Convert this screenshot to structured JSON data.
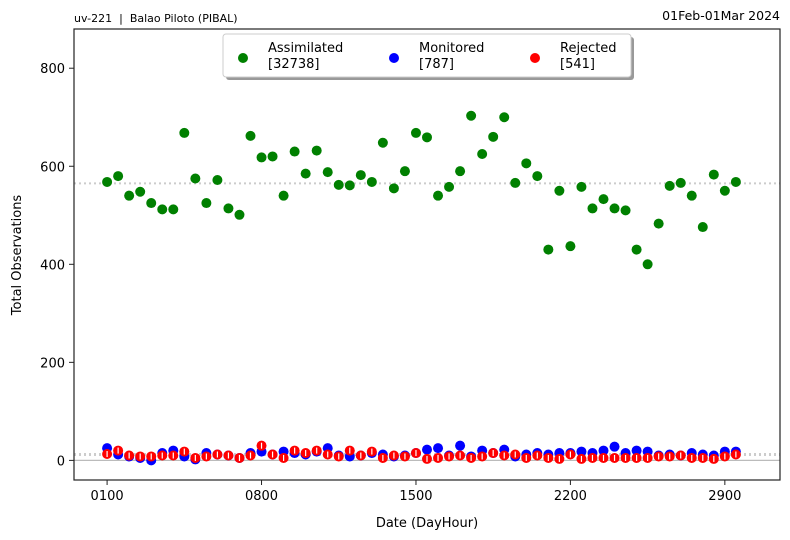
{
  "header": {
    "left_title": "uv-221  |  Balao Piloto (PIBAL)",
    "right_title": "01Feb-01Mar 2024"
  },
  "chart_data": {
    "type": "scatter",
    "xlabel": "Date (DayHour)",
    "ylabel": "Total Observations",
    "xlim": [
      -3,
      61
    ],
    "ylim": [
      -40,
      880
    ],
    "x_ticks": [
      {
        "value": 0,
        "label": "0100"
      },
      {
        "value": 14,
        "label": "0800"
      },
      {
        "value": 28,
        "label": "1500"
      },
      {
        "value": 42,
        "label": "2200"
      },
      {
        "value": 56,
        "label": "2900"
      }
    ],
    "y_ticks": [
      0,
      200,
      400,
      600,
      800
    ],
    "reference_lines": [
      {
        "series": "Assimilated",
        "y": 565
      },
      {
        "series": "Monitored",
        "y": 13
      },
      {
        "series": "Rejected",
        "y": 11
      }
    ],
    "legend": {
      "placement": "top-center",
      "entries": [
        {
          "name": "Assimilated",
          "count": "[32738]",
          "color": "#008000"
        },
        {
          "name": "Monitored",
          "count": "[787]",
          "color": "#0000ff"
        },
        {
          "name": "Rejected",
          "count": "[541]",
          "color": "#ff0000"
        }
      ]
    },
    "series": [
      {
        "name": "Assimilated",
        "color": "#008000",
        "x": [
          0,
          1,
          2,
          3,
          4,
          5,
          6,
          7,
          8,
          9,
          10,
          11,
          12,
          13,
          14,
          15,
          16,
          17,
          18,
          19,
          20,
          21,
          22,
          23,
          24,
          25,
          26,
          27,
          28,
          29,
          30,
          31,
          32,
          33,
          34,
          35,
          36,
          37,
          38,
          39,
          40,
          41,
          42,
          43,
          44,
          45,
          46,
          47,
          48,
          49,
          50,
          51,
          52,
          53,
          54,
          55,
          56,
          57
        ],
        "values": [
          568,
          580,
          540,
          548,
          525,
          512,
          512,
          668,
          575,
          525,
          572,
          514,
          501,
          662,
          618,
          620,
          540,
          630,
          585,
          632,
          588,
          562,
          561,
          582,
          568,
          648,
          555,
          590,
          668,
          659,
          540,
          558,
          590,
          703,
          625,
          660,
          700,
          566,
          606,
          580,
          430,
          550,
          437,
          558,
          514,
          533,
          514,
          510,
          430,
          400,
          483,
          560,
          566,
          540,
          476,
          583,
          550,
          568
        ]
      },
      {
        "name": "Monitored",
        "color": "#0000ff",
        "x": [
          0,
          1,
          2,
          3,
          4,
          5,
          6,
          7,
          8,
          9,
          10,
          11,
          12,
          13,
          14,
          15,
          16,
          17,
          18,
          19,
          20,
          21,
          22,
          23,
          24,
          25,
          26,
          27,
          28,
          29,
          30,
          31,
          32,
          33,
          34,
          35,
          36,
          37,
          38,
          39,
          40,
          41,
          42,
          43,
          44,
          45,
          46,
          47,
          48,
          49,
          50,
          51,
          52,
          53,
          54,
          55,
          56,
          57
        ],
        "values": [
          25,
          12,
          8,
          5,
          0,
          15,
          20,
          8,
          2,
          15,
          12,
          10,
          5,
          15,
          18,
          12,
          18,
          15,
          12,
          18,
          25,
          10,
          8,
          10,
          15,
          12,
          8,
          10,
          15,
          22,
          25,
          10,
          30,
          8,
          20,
          15,
          22,
          8,
          12,
          15,
          12,
          15,
          15,
          18,
          15,
          20,
          28,
          15,
          20,
          18,
          10,
          12,
          10,
          15,
          12,
          10,
          18,
          18
        ]
      },
      {
        "name": "Rejected",
        "color": "#ff0000",
        "x": [
          0,
          1,
          2,
          3,
          4,
          5,
          6,
          7,
          8,
          9,
          10,
          11,
          12,
          13,
          14,
          15,
          16,
          17,
          18,
          19,
          20,
          21,
          22,
          23,
          24,
          25,
          26,
          27,
          28,
          29,
          30,
          31,
          32,
          33,
          34,
          35,
          36,
          37,
          38,
          39,
          40,
          41,
          42,
          43,
          44,
          45,
          46,
          47,
          48,
          49,
          50,
          51,
          52,
          53,
          54,
          55,
          56,
          57
        ],
        "values": [
          13,
          20,
          10,
          8,
          8,
          10,
          10,
          18,
          5,
          8,
          12,
          10,
          5,
          10,
          30,
          12,
          5,
          20,
          15,
          20,
          12,
          8,
          20,
          10,
          18,
          5,
          10,
          8,
          15,
          3,
          5,
          8,
          10,
          5,
          8,
          15,
          10,
          12,
          5,
          10,
          5,
          3,
          12,
          3,
          5,
          5,
          5,
          5,
          5,
          5,
          8,
          8,
          10,
          5,
          5,
          3,
          8,
          12
        ]
      }
    ]
  }
}
